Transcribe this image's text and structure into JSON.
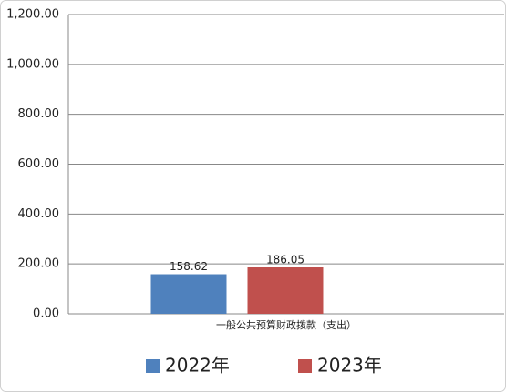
{
  "chart_data": {
    "type": "bar",
    "categories": [
      "一般公共预算财政拨款（支出）"
    ],
    "series": [
      {
        "name": "2022年",
        "color": "#4f81bd",
        "values": [
          158.62
        ]
      },
      {
        "name": "2023年",
        "color": "#c0504d",
        "values": [
          186.05
        ]
      }
    ],
    "ylim": [
      0,
      1200
    ],
    "yticks": [
      {
        "value": 0,
        "label": "0.00"
      },
      {
        "value": 200,
        "label": "200.00"
      },
      {
        "value": 400,
        "label": "400.00"
      },
      {
        "value": 600,
        "label": "600.00"
      },
      {
        "value": 800,
        "label": "800.00"
      },
      {
        "value": 1000,
        "label": "1,000.00"
      },
      {
        "value": 1200,
        "label": "1,200.00"
      }
    ],
    "grid": true,
    "legend": "bottom"
  }
}
